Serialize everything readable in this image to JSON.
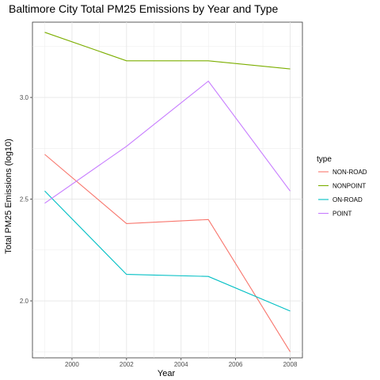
{
  "chart_data": {
    "type": "line",
    "title": "Baltimore City Total PM25 Emissions by Year and Type",
    "xlabel": "Year",
    "ylabel": "Total PM25 Emissions (log10)",
    "x": [
      1999,
      2002,
      2005,
      2008
    ],
    "xlim": [
      1998.55,
      2008.45
    ],
    "ylim": [
      1.72,
      3.37
    ],
    "x_ticks": [
      2000,
      2002,
      2004,
      2006,
      2008
    ],
    "x_tick_labels": [
      "2000",
      "2002",
      "2004",
      "2006",
      "2008"
    ],
    "y_ticks": [
      2.0,
      2.5,
      3.0
    ],
    "y_tick_labels": [
      "2.0",
      "2.5",
      "3.0"
    ],
    "grid": true,
    "legend_title": "type",
    "legend_position": "right",
    "series": [
      {
        "name": "NON-ROAD",
        "color": "#F8766D",
        "values": [
          2.72,
          2.38,
          2.4,
          1.75
        ]
      },
      {
        "name": "NONPOINT",
        "color": "#7CAE00",
        "values": [
          3.32,
          3.18,
          3.18,
          3.14
        ]
      },
      {
        "name": "ON-ROAD",
        "color": "#00BFC4",
        "values": [
          2.54,
          2.13,
          2.12,
          1.95
        ]
      },
      {
        "name": "POINT",
        "color": "#C77CFF",
        "values": [
          2.48,
          2.76,
          3.08,
          2.54
        ]
      }
    ]
  }
}
